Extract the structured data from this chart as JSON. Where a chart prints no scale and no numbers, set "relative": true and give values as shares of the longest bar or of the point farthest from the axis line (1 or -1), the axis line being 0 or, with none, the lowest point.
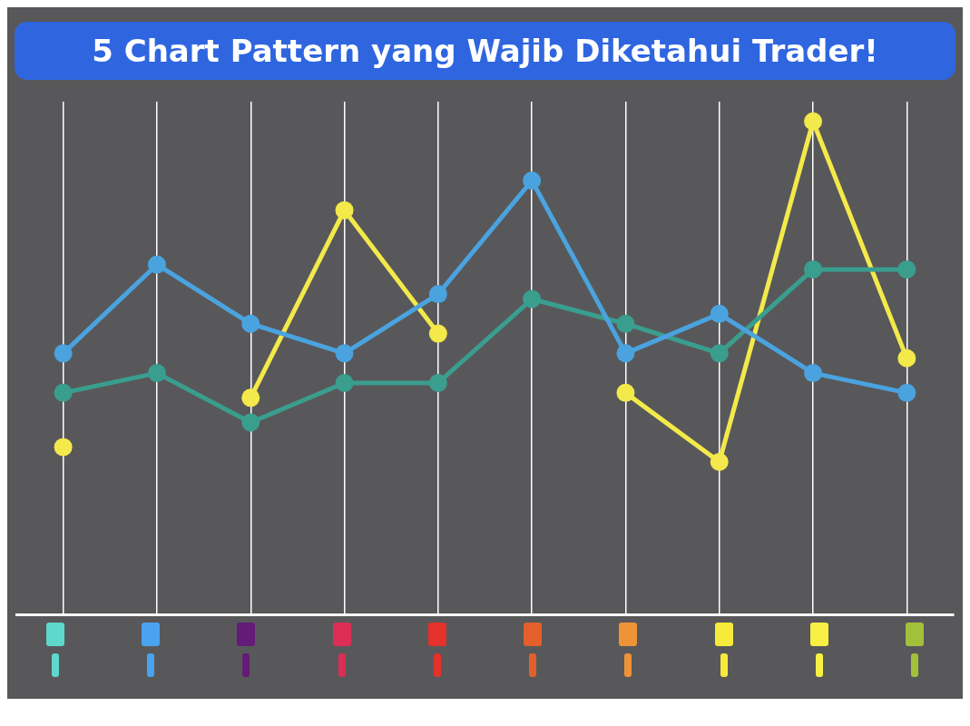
{
  "chart_data": {
    "type": "line",
    "title": "5 Chart Pattern yang Wajib Diketahui Trader!",
    "relative": true,
    "grid": "x",
    "legend": false,
    "marker": "circle",
    "line_style": "solid",
    "categories": [
      null,
      null,
      null,
      null,
      null,
      null,
      null,
      null,
      null,
      null
    ],
    "series": [
      {
        "color": "#4aa3df",
        "values": [
          0.53,
          0.71,
          0.59,
          0.53,
          0.65,
          0.88,
          0.53,
          0.61,
          0.49,
          0.45
        ]
      },
      {
        "color": "#3a9e8f",
        "values": [
          0.45,
          0.49,
          0.39,
          0.47,
          0.47,
          0.64,
          0.59,
          0.53,
          0.7,
          0.7
        ]
      },
      {
        "color": "#f3e94a",
        "values": [
          0.34,
          null,
          0.44,
          0.82,
          0.57,
          null,
          0.45,
          0.31,
          1.0,
          0.52
        ]
      }
    ]
  }
}
